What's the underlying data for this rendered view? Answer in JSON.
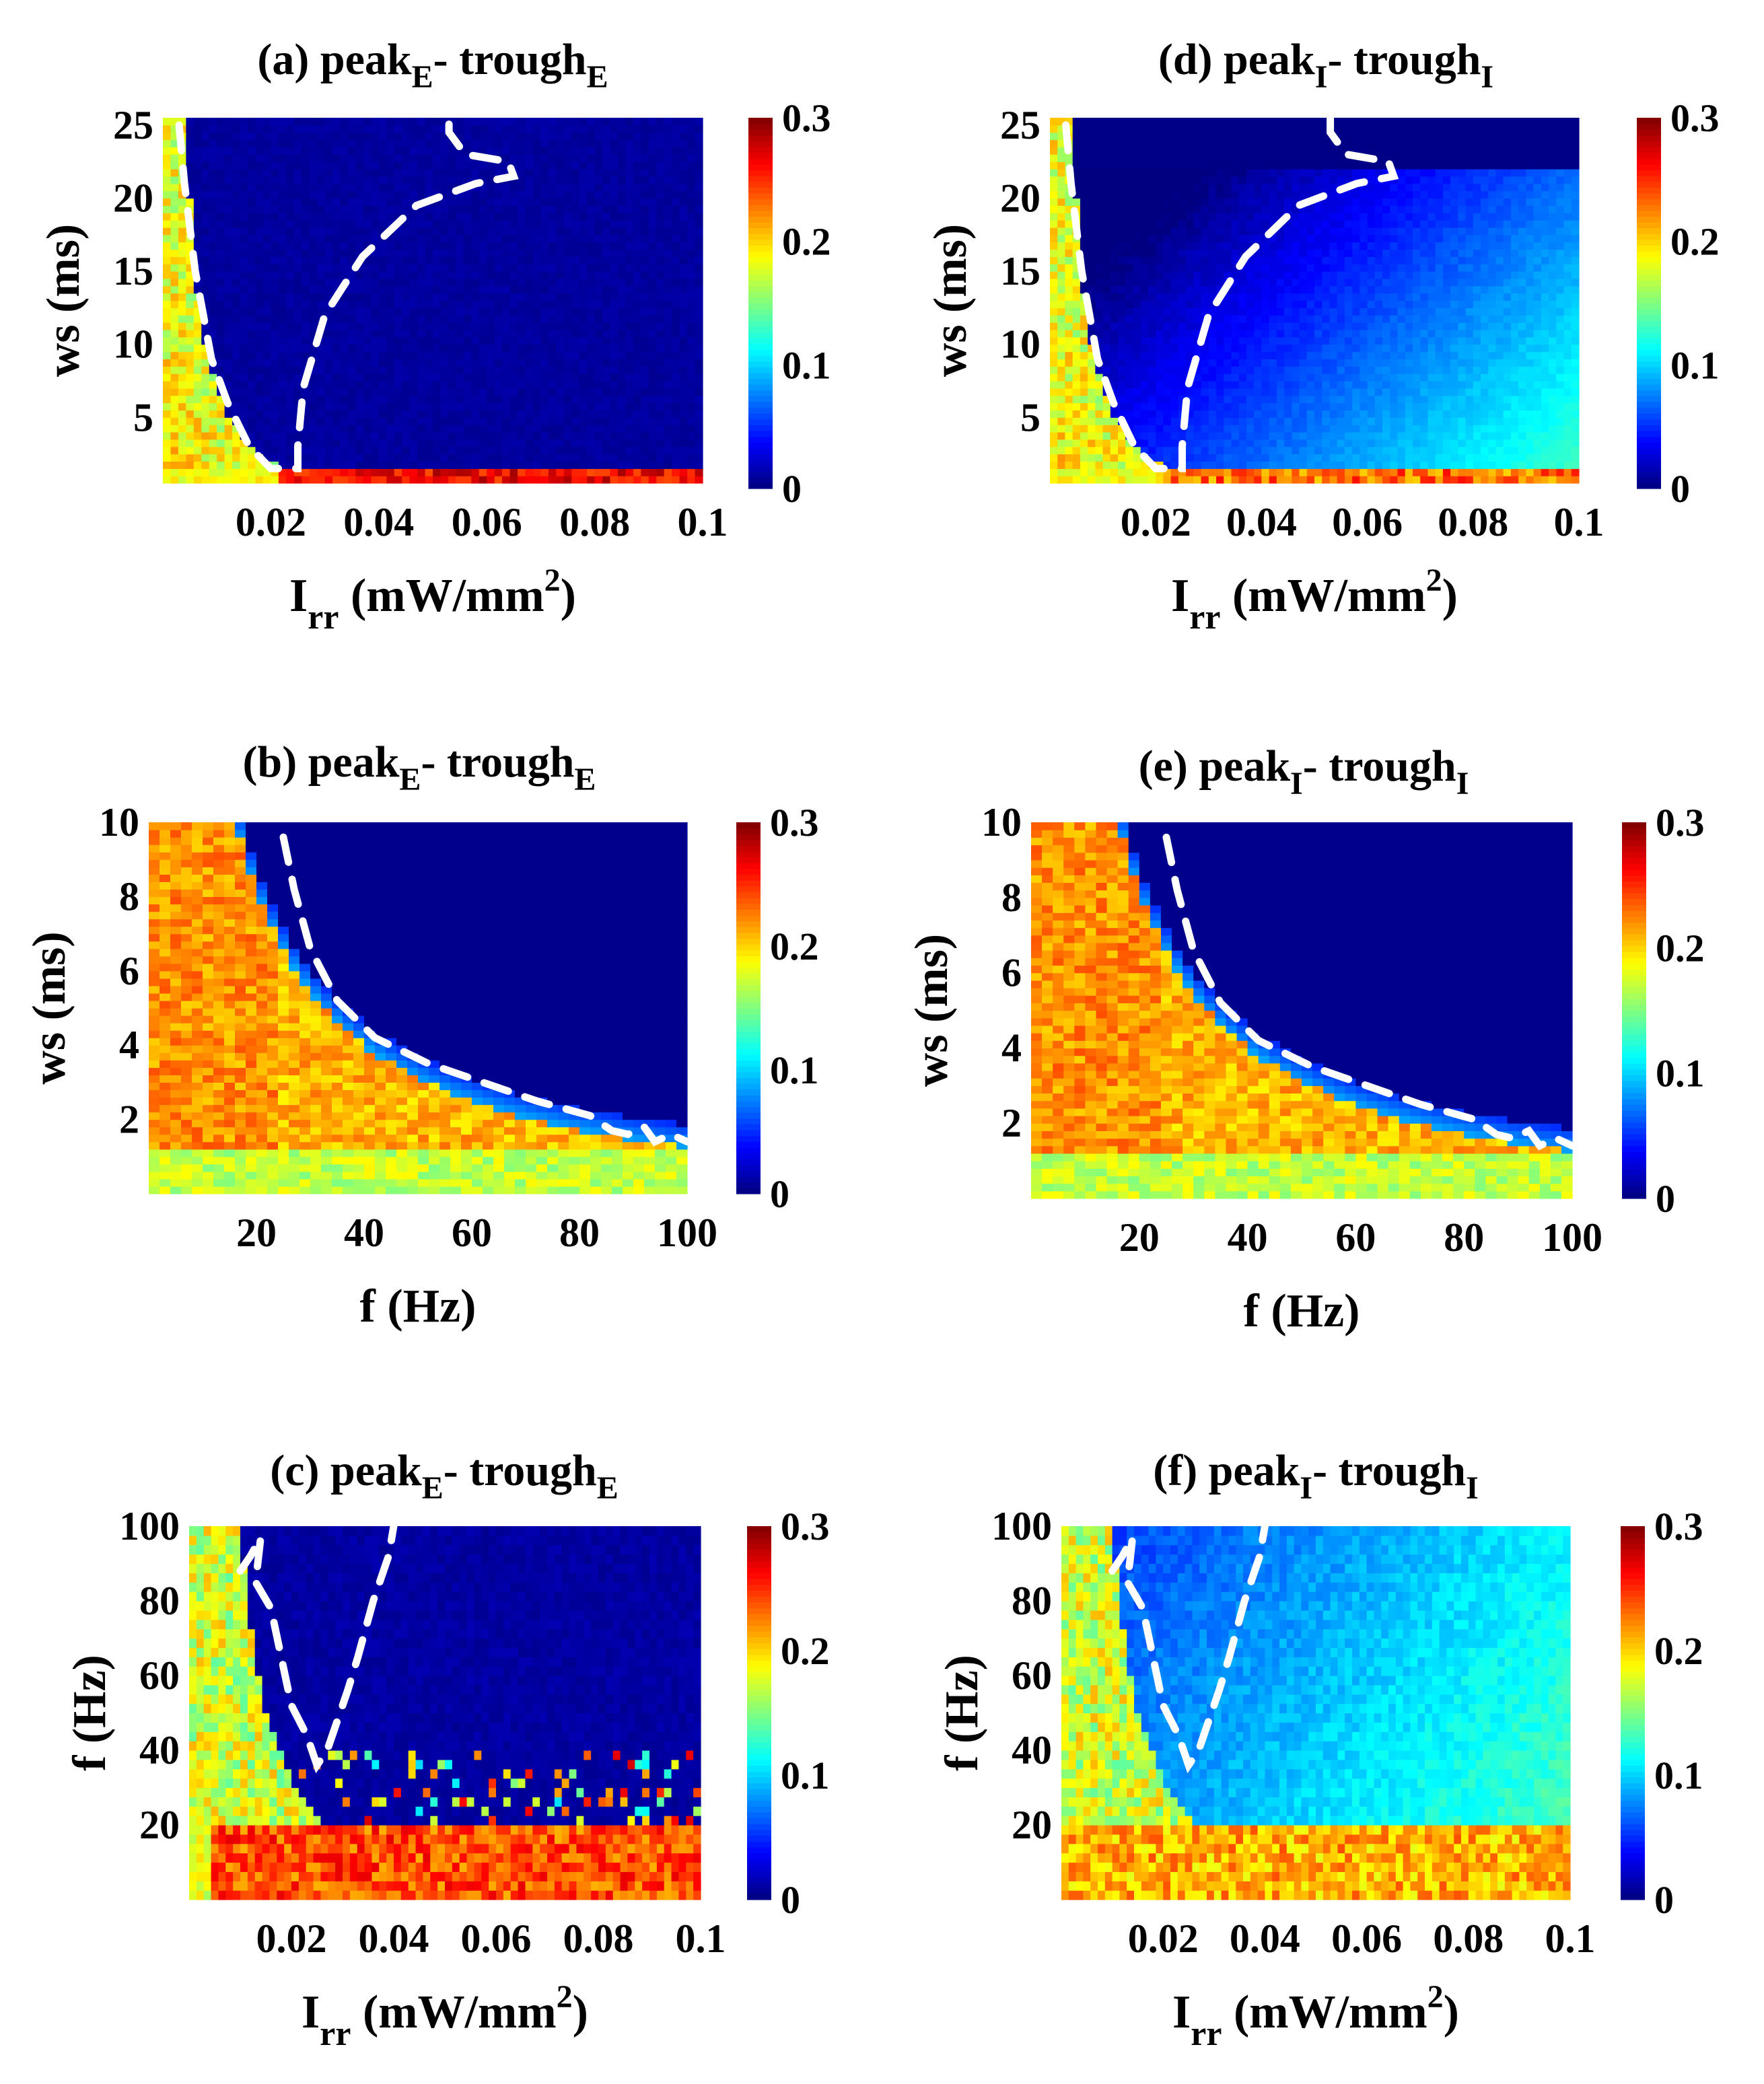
{
  "chart_data": [
    {
      "id": "a",
      "type": "heatmap",
      "variant": "irr_ws",
      "variable": "E",
      "title": {
        "prefix": "(a) ",
        "peak": "peak",
        "sep": "- ",
        "trough": "trough",
        "subscript": "E"
      },
      "x_tick_labels": [
        "0.02",
        "0.04",
        "0.06",
        "0.08",
        "0.1"
      ],
      "y_tick_labels": [
        "5",
        "10",
        "15",
        "20",
        "25"
      ],
      "xlabel": {
        "main": "I",
        "sub": "rr",
        "unit": " (mW/mm",
        "sup": "2",
        "close": ")"
      },
      "ylabel": "ws (ms)",
      "xlim": [
        0,
        0.1
      ],
      "ylim": [
        0.5,
        25.5
      ],
      "colorbar": {
        "min": 0,
        "max": 0.3,
        "tick_labels": [
          "0",
          "0.1",
          "0.2",
          "0.3"
        ]
      }
    },
    {
      "id": "b",
      "type": "heatmap",
      "variant": "f_ws",
      "variable": "E",
      "title": {
        "prefix": "(b) ",
        "peak": "peak",
        "sep": "- ",
        "trough": "trough",
        "subscript": "E"
      },
      "x_tick_labels": [
        "20",
        "40",
        "60",
        "80",
        "100"
      ],
      "y_tick_labels": [
        "2",
        "4",
        "6",
        "8",
        "10"
      ],
      "xlabel": {
        "main": "f (Hz)"
      },
      "ylabel": "ws (ms)",
      "xlim": [
        0,
        100
      ],
      "ylim": [
        0,
        10
      ],
      "colorbar": {
        "min": 0,
        "max": 0.3,
        "tick_labels": [
          "0",
          "0.1",
          "0.2",
          "0.3"
        ]
      }
    },
    {
      "id": "c",
      "type": "heatmap",
      "variant": "irr_f",
      "variable": "E",
      "title": {
        "prefix": "(c) ",
        "peak": "peak",
        "sep": "- ",
        "trough": "trough",
        "subscript": "E"
      },
      "x_tick_labels": [
        "0.02",
        "0.04",
        "0.06",
        "0.08",
        "0.1"
      ],
      "y_tick_labels": [
        "20",
        "40",
        "60",
        "80",
        "100"
      ],
      "xlabel": {
        "main": "I",
        "sub": "rr",
        "unit": " (mW/mm",
        "sup": "2",
        "close": ")"
      },
      "ylabel": "f (Hz)",
      "xlim": [
        0,
        0.1
      ],
      "ylim": [
        0,
        100
      ],
      "colorbar": {
        "min": 0,
        "max": 0.3,
        "tick_labels": [
          "0",
          "0.1",
          "0.2",
          "0.3"
        ]
      }
    },
    {
      "id": "d",
      "type": "heatmap",
      "variant": "irr_ws",
      "variable": "I",
      "title": {
        "prefix": "(d) ",
        "peak": "peak",
        "sep": "- ",
        "trough": "trough",
        "subscript": "I"
      },
      "x_tick_labels": [
        "0.02",
        "0.04",
        "0.06",
        "0.08",
        "0.1"
      ],
      "y_tick_labels": [
        "5",
        "10",
        "15",
        "20",
        "25"
      ],
      "xlabel": {
        "main": "I",
        "sub": "rr",
        "unit": " (mW/mm",
        "sup": "2",
        "close": ")"
      },
      "ylabel": "ws (ms)",
      "xlim": [
        0,
        0.1
      ],
      "ylim": [
        0.5,
        25.5
      ],
      "colorbar": {
        "min": 0,
        "max": 0.3,
        "tick_labels": [
          "0",
          "0.1",
          "0.2",
          "0.3"
        ]
      }
    },
    {
      "id": "e",
      "type": "heatmap",
      "variant": "f_ws",
      "variable": "I",
      "title": {
        "prefix": "(e) ",
        "peak": "peak",
        "sep": "- ",
        "trough": "trough",
        "subscript": "I"
      },
      "x_tick_labels": [
        "20",
        "40",
        "60",
        "80",
        "100"
      ],
      "y_tick_labels": [
        "2",
        "4",
        "6",
        "8",
        "10"
      ],
      "xlabel": {
        "main": "f (Hz)"
      },
      "ylabel": "ws (ms)",
      "xlim": [
        0,
        100
      ],
      "ylim": [
        0,
        10
      ],
      "colorbar": {
        "min": 0,
        "max": 0.3,
        "tick_labels": [
          "0",
          "0.1",
          "0.2",
          "0.3"
        ]
      }
    },
    {
      "id": "f",
      "type": "heatmap",
      "variant": "irr_f",
      "variable": "I",
      "title": {
        "prefix": "(f) ",
        "peak": "peak",
        "sep": "- ",
        "trough": "trough",
        "subscript": "I"
      },
      "x_tick_labels": [
        "0.02",
        "0.04",
        "0.06",
        "0.08",
        "0.1"
      ],
      "y_tick_labels": [
        "20",
        "40",
        "60",
        "80",
        "100"
      ],
      "xlabel": {
        "main": "I",
        "sub": "rr",
        "unit": " (mW/mm",
        "sup": "2",
        "close": ")"
      },
      "ylabel": "f (Hz)",
      "xlim": [
        0,
        0.1
      ],
      "ylim": [
        0,
        100
      ],
      "colorbar": {
        "min": 0,
        "max": 0.3,
        "tick_labels": [
          "0",
          "0.1",
          "0.2",
          "0.3"
        ]
      }
    }
  ]
}
